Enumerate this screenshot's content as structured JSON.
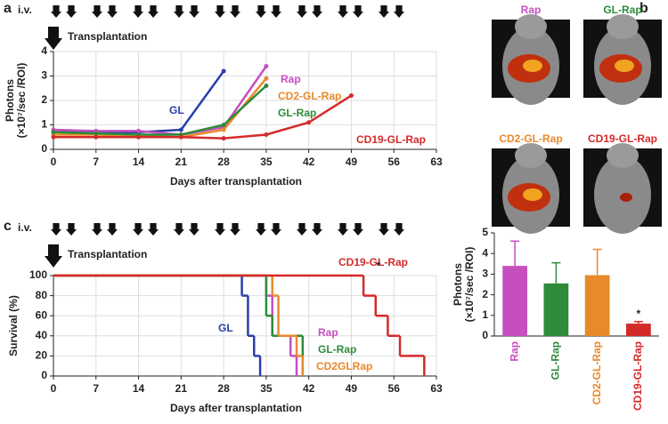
{
  "chart_data": [
    {
      "type": "line",
      "panel": "a",
      "iv_label": "i.v.",
      "event_label": "Transplantation",
      "xlabel": "Days after transplantation",
      "ylabel": [
        "Photons",
        "(×10⁷/sec /ROI)"
      ],
      "xlim": [
        0,
        63
      ],
      "xticks": [
        0,
        7,
        14,
        21,
        28,
        35,
        42,
        49,
        56,
        63
      ],
      "ylim": [
        0,
        4
      ],
      "yticks": [
        0,
        1,
        2,
        3,
        4
      ],
      "grid": true,
      "series": [
        {
          "name": "GL",
          "color": "#2b3fa8",
          "x": [
            0,
            7,
            14,
            21,
            28
          ],
          "values": [
            0.7,
            0.7,
            0.7,
            0.8,
            3.2
          ]
        },
        {
          "name": "Rap",
          "color": "#c64fc0",
          "x": [
            0,
            7,
            14,
            21,
            28,
            35
          ],
          "values": [
            0.8,
            0.75,
            0.75,
            0.6,
            0.9,
            3.4
          ]
        },
        {
          "name": "CD2-GL-Rap",
          "color": "#e8892b",
          "x": [
            0,
            7,
            14,
            21,
            28,
            35
          ],
          "values": [
            0.6,
            0.6,
            0.55,
            0.5,
            0.8,
            2.9
          ]
        },
        {
          "name": "GL-Rap",
          "color": "#2e8b3a",
          "x": [
            0,
            7,
            14,
            21,
            28,
            35
          ],
          "values": [
            0.7,
            0.65,
            0.6,
            0.6,
            1.0,
            2.6
          ]
        },
        {
          "name": "CD19-GL-Rap",
          "color": "#d42a2a",
          "x": [
            0,
            7,
            14,
            21,
            28,
            35,
            42,
            49
          ],
          "values": [
            0.5,
            0.5,
            0.5,
            0.5,
            0.45,
            0.6,
            1.1,
            2.2
          ]
        }
      ]
    },
    {
      "type": "bar",
      "panel": "b",
      "ylabel": [
        "Photons",
        "(×10⁷/sec /ROI)"
      ],
      "categories": [
        "Rap",
        "GL-Rap",
        "CD2-GL-Rap",
        "CD19-GL-Rap"
      ],
      "values": [
        3.4,
        2.55,
        2.95,
        0.6
      ],
      "errors": [
        1.2,
        1.0,
        1.25,
        0.1
      ],
      "colors": [
        "#c64fc0",
        "#2e8b3a",
        "#e8892b",
        "#d42a2a"
      ],
      "ylim": [
        0,
        5
      ],
      "yticks": [
        0,
        1,
        2,
        3,
        4,
        5
      ],
      "annotation": "*",
      "images": [
        "Rap",
        "GL-Rap",
        "CD2-GL-Rap",
        "CD19-GL-Rap"
      ]
    },
    {
      "type": "step",
      "panel": "c",
      "iv_label": "i.v.",
      "event_label": "Transplantation",
      "xlabel": "Days after transplantation",
      "ylabel": "Survival (%)",
      "xlim": [
        0,
        63
      ],
      "xticks": [
        0,
        7,
        14,
        21,
        28,
        35,
        42,
        49,
        56,
        63
      ],
      "ylim": [
        0,
        100
      ],
      "yticks": [
        0,
        20,
        40,
        60,
        80,
        100
      ],
      "grid": true,
      "annotation": "*",
      "series": [
        {
          "name": "GL",
          "color": "#2b3fa8",
          "x": [
            0,
            31,
            32,
            33,
            34
          ],
          "values": [
            100,
            80,
            40,
            20,
            0
          ]
        },
        {
          "name": "Rap",
          "color": "#c64fc0",
          "x": [
            0,
            35,
            36,
            39,
            40
          ],
          "values": [
            100,
            80,
            40,
            20,
            0
          ]
        },
        {
          "name": "GL-Rap",
          "color": "#2e8b3a",
          "x": [
            0,
            35,
            36,
            41
          ],
          "values": [
            100,
            60,
            40,
            0
          ]
        },
        {
          "name": "CD2GLRap",
          "color": "#e8892b",
          "x": [
            0,
            36,
            37,
            40,
            41
          ],
          "values": [
            100,
            80,
            40,
            20,
            0
          ]
        },
        {
          "name": "CD19-GL-Rap",
          "color": "#d42a2a",
          "x": [
            0,
            51,
            53,
            55,
            57,
            61
          ],
          "values": [
            100,
            80,
            60,
            40,
            20,
            0
          ]
        }
      ]
    }
  ]
}
